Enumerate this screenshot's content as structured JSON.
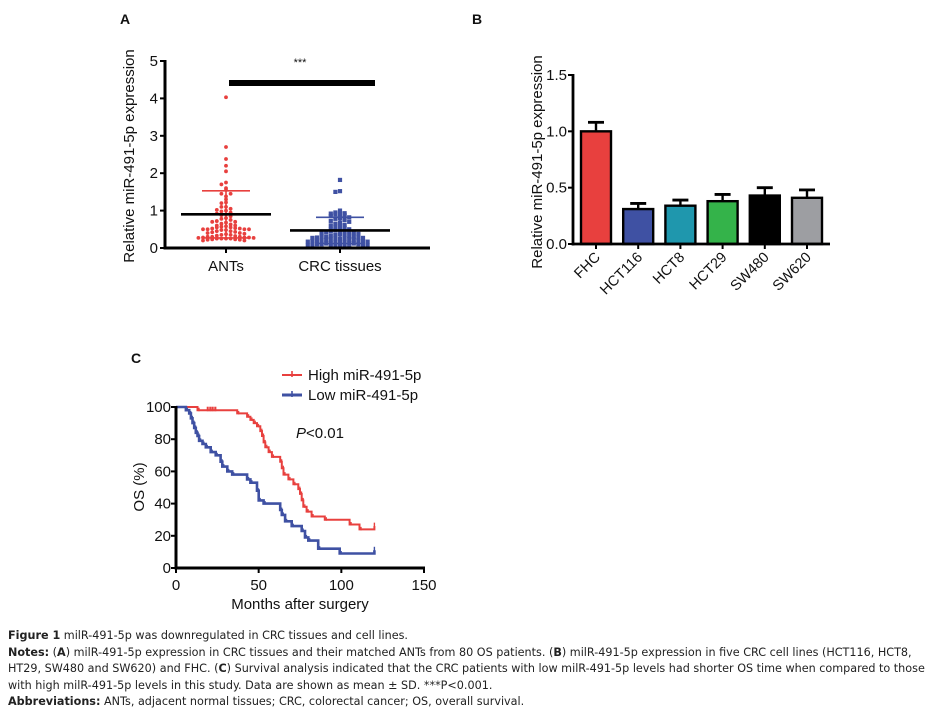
{
  "chart_data": [
    {
      "panel": "A",
      "type": "scatter",
      "title": "",
      "significance": "***",
      "xlabel": "",
      "ylabel": "Relative miR-491-5p expression",
      "ylim": [
        0,
        5
      ],
      "yticks": [
        "0",
        "1",
        "2",
        "3",
        "4",
        "5"
      ],
      "categories": [
        "ANTs",
        "CRC tissues"
      ],
      "series": [
        {
          "name": "ANTs",
          "color": "#e8403e",
          "marker": "circle",
          "mean": 0.9,
          "sd_upper": 1.53,
          "sd_lower": 0.27,
          "values": [
            4.03,
            2.7,
            2.38,
            2.2,
            2.05,
            1.75,
            1.7,
            1.6,
            1.55,
            1.45,
            1.45,
            1.38,
            1.3,
            1.22,
            1.2,
            1.1,
            1.1,
            1.05,
            1.02,
            1.0,
            0.98,
            0.95,
            0.92,
            0.9,
            0.88,
            0.85,
            0.8,
            0.78,
            0.75,
            0.72,
            0.7,
            0.7,
            0.68,
            0.65,
            0.63,
            0.6,
            0.6,
            0.58,
            0.57,
            0.55,
            0.55,
            0.53,
            0.52,
            0.52,
            0.5,
            0.5,
            0.5,
            0.5,
            0.48,
            0.48,
            0.45,
            0.45,
            0.43,
            0.42,
            0.4,
            0.4,
            0.38,
            0.37,
            0.35,
            0.35,
            0.33,
            0.32,
            0.3,
            0.3,
            0.3,
            0.28,
            0.28,
            0.28,
            0.27,
            0.27,
            0.25,
            0.25,
            0.25,
            0.25,
            0.23,
            0.23,
            0.22,
            0.22,
            0.2,
            0.2
          ]
        },
        {
          "name": "CRC tissues",
          "color": "#3f51a3",
          "marker": "square",
          "mean": 0.47,
          "sd_upper": 0.82,
          "sd_lower": 0.12,
          "values": [
            1.82,
            1.52,
            1.5,
            1.0,
            0.95,
            0.93,
            0.92,
            0.9,
            0.9,
            0.88,
            0.85,
            0.82,
            0.8,
            0.78,
            0.75,
            0.72,
            0.7,
            0.68,
            0.65,
            0.62,
            0.6,
            0.58,
            0.55,
            0.53,
            0.5,
            0.5,
            0.48,
            0.47,
            0.45,
            0.45,
            0.43,
            0.42,
            0.4,
            0.4,
            0.38,
            0.37,
            0.35,
            0.35,
            0.33,
            0.32,
            0.3,
            0.3,
            0.3,
            0.28,
            0.28,
            0.27,
            0.27,
            0.25,
            0.25,
            0.25,
            0.23,
            0.23,
            0.22,
            0.22,
            0.2,
            0.2,
            0.2,
            0.18,
            0.18,
            0.17,
            0.17,
            0.15,
            0.15,
            0.15,
            0.13,
            0.13,
            0.12,
            0.12,
            0.1,
            0.1,
            0.1,
            0.08,
            0.08,
            0.07,
            0.07,
            0.05,
            0.05,
            0.04,
            0.03,
            0.02
          ]
        }
      ]
    },
    {
      "panel": "B",
      "type": "bar",
      "title": "",
      "xlabel": "",
      "ylabel": "Relative miR-491-5p expression",
      "ylim": [
        0,
        1.5
      ],
      "yticks": [
        "0.0",
        "0.5",
        "1.0",
        "1.5"
      ],
      "categories": [
        "FHC",
        "HCT116",
        "HCT8",
        "HCT29",
        "SW480",
        "SW620"
      ],
      "values": [
        1.0,
        0.31,
        0.34,
        0.38,
        0.43,
        0.41
      ],
      "errors": [
        0.08,
        0.05,
        0.05,
        0.06,
        0.07,
        0.07
      ],
      "colors": [
        "#e8403e",
        "#3f51a3",
        "#1f97ad",
        "#34b34a",
        "#000000",
        "#9d9ea2"
      ]
    },
    {
      "panel": "C",
      "type": "line",
      "title": "",
      "annotation": "P<0.01",
      "annotation_italic": "P",
      "annotation_rest": "<0.01",
      "xlabel": "Months after surgery",
      "ylabel": "OS (%)",
      "xlim": [
        0,
        150
      ],
      "ylim": [
        0,
        100
      ],
      "xticks": [
        "0",
        "50",
        "100",
        "150"
      ],
      "yticks": [
        "0",
        "20",
        "40",
        "60",
        "80",
        "100"
      ],
      "legend": "top-right",
      "series": [
        {
          "name": "High miR-491-5p",
          "color": "#e8403e",
          "steps": [
            [
              0,
              100
            ],
            [
              13,
              100
            ],
            [
              13,
              98
            ],
            [
              37,
              98
            ],
            [
              37,
              96
            ],
            [
              43,
              96
            ],
            [
              43,
              94
            ],
            [
              45,
              94
            ],
            [
              45,
              92
            ],
            [
              47,
              92
            ],
            [
              47,
              90
            ],
            [
              49,
              90
            ],
            [
              49,
              88
            ],
            [
              51,
              88
            ],
            [
              51,
              85
            ],
            [
              52,
              85
            ],
            [
              52,
              82
            ],
            [
              53,
              82
            ],
            [
              53,
              78
            ],
            [
              54,
              78
            ],
            [
              54,
              75
            ],
            [
              56,
              75
            ],
            [
              56,
              72
            ],
            [
              58,
              72
            ],
            [
              58,
              69
            ],
            [
              63,
              69
            ],
            [
              63,
              66
            ],
            [
              64,
              66
            ],
            [
              64,
              62
            ],
            [
              65,
              62
            ],
            [
              65,
              58
            ],
            [
              68,
              58
            ],
            [
              68,
              55
            ],
            [
              71,
              55
            ],
            [
              71,
              52
            ],
            [
              74,
              52
            ],
            [
              74,
              49
            ],
            [
              75,
              49
            ],
            [
              75,
              46
            ],
            [
              76,
              46
            ],
            [
              76,
              42
            ],
            [
              77,
              42
            ],
            [
              77,
              38
            ],
            [
              79,
              38
            ],
            [
              79,
              35
            ],
            [
              82,
              35
            ],
            [
              82,
              32
            ],
            [
              90,
              32
            ],
            [
              90,
              30
            ],
            [
              105,
              30
            ],
            [
              105,
              27
            ],
            [
              111,
              27
            ],
            [
              111,
              24
            ],
            [
              120,
              24
            ],
            [
              120,
              26
            ]
          ],
          "censor_x": [
            19,
            20,
            21,
            22,
            23,
            24,
            120
          ]
        },
        {
          "name": "Low miR-491-5p",
          "color": "#3f51a3",
          "steps": [
            [
              0,
              100
            ],
            [
              6,
              100
            ],
            [
              6,
              98
            ],
            [
              8,
              98
            ],
            [
              8,
              96
            ],
            [
              9,
              96
            ],
            [
              9,
              93
            ],
            [
              10,
              93
            ],
            [
              10,
              90
            ],
            [
              11,
              90
            ],
            [
              11,
              87
            ],
            [
              12,
              87
            ],
            [
              12,
              84
            ],
            [
              13,
              84
            ],
            [
              13,
              82
            ],
            [
              14,
              82
            ],
            [
              14,
              79
            ],
            [
              16,
              79
            ],
            [
              16,
              77
            ],
            [
              18,
              77
            ],
            [
              18,
              75
            ],
            [
              21,
              75
            ],
            [
              21,
              72
            ],
            [
              24,
              72
            ],
            [
              24,
              70
            ],
            [
              27,
              70
            ],
            [
              27,
              66
            ],
            [
              28,
              66
            ],
            [
              28,
              63
            ],
            [
              31,
              63
            ],
            [
              31,
              60
            ],
            [
              34,
              60
            ],
            [
              34,
              58
            ],
            [
              43,
              58
            ],
            [
              43,
              55
            ],
            [
              45,
              55
            ],
            [
              45,
              53
            ],
            [
              49,
              53
            ],
            [
              49,
              48
            ],
            [
              50,
              48
            ],
            [
              50,
              42
            ],
            [
              53,
              42
            ],
            [
              53,
              40
            ],
            [
              63,
              40
            ],
            [
              63,
              36
            ],
            [
              64,
              36
            ],
            [
              64,
              33
            ],
            [
              66,
              33
            ],
            [
              66,
              29
            ],
            [
              70,
              29
            ],
            [
              70,
              26
            ],
            [
              76,
              26
            ],
            [
              76,
              23
            ],
            [
              78,
              23
            ],
            [
              78,
              19
            ],
            [
              80,
              19
            ],
            [
              80,
              17
            ],
            [
              86,
              17
            ],
            [
              86,
              12
            ],
            [
              99,
              12
            ],
            [
              99,
              9
            ],
            [
              120,
              9
            ],
            [
              120,
              11
            ]
          ],
          "censor_x": [
            120
          ]
        }
      ]
    }
  ],
  "panel_labels": {
    "a": "A",
    "b": "B",
    "c": "C"
  },
  "caption": {
    "figure_label": "Figure 1",
    "figure_title": "milR-491-5p was downregulated in CRC tissues and cell lines.",
    "notes_label": "Notes:",
    "notes_a_label": "A",
    "notes_a_text": "milR-491-5p expression in CRC tissues and their matched ANTs from 80 OS patients.",
    "notes_b_label": "B",
    "notes_b_text": "milR-491-5p expression in five CRC cell lines (HCT116, HCT8, HT29, SW480 and SW620) and FHC.",
    "notes_c_label": "C",
    "notes_c_text": "Survival analysis indicated that the CRC patients with low milR-491-5p levels had shorter OS time when compared to those with high milR-491-5p levels in this study. Data are shown as mean ± SD. ***P<0.001.",
    "abbrev_label": "Abbreviations:",
    "abbrev_text": "ANTs, adjacent normal tissues; CRC, colorectal cancer; OS, overall survival."
  }
}
